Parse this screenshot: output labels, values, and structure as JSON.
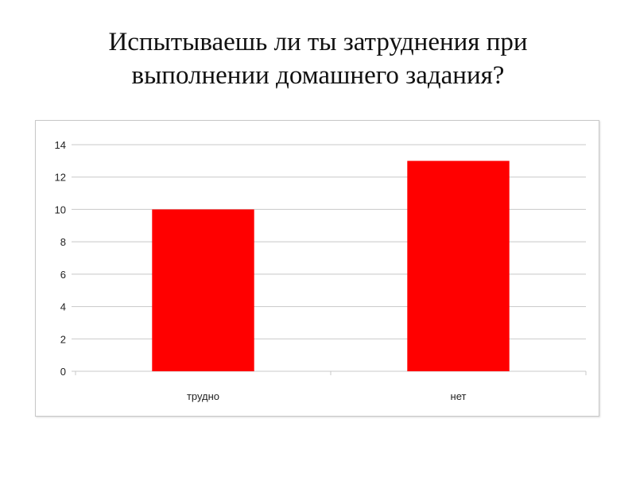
{
  "title_line1": "Испытываешь ли ты затруднения при",
  "title_line2": "выполнении домашнего задания?",
  "chart_data": {
    "type": "bar",
    "categories": [
      "трудно",
      "нет"
    ],
    "values": [
      10,
      13
    ],
    "ylim": [
      0,
      14
    ],
    "yticks": [
      0,
      2,
      4,
      6,
      8,
      10,
      12,
      14
    ],
    "grid": true,
    "bar_color": "#ff0000",
    "grid_color": "#c8c8c8"
  }
}
